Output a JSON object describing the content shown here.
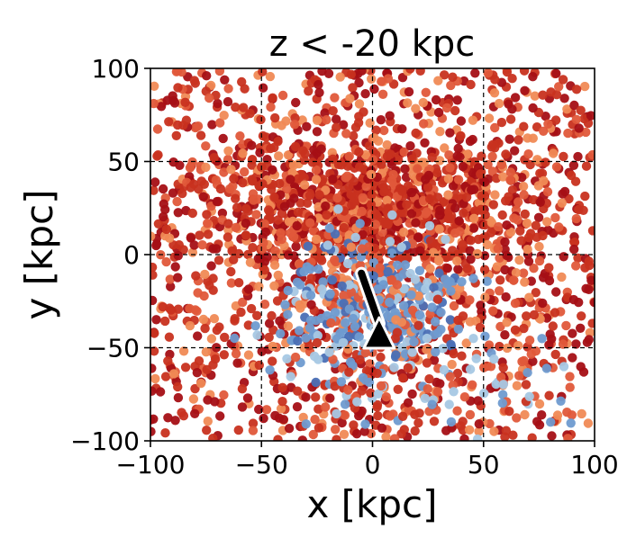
{
  "chart_data": {
    "type": "scatter",
    "title": "z < -20 kpc",
    "xlabel": "x [kpc]",
    "ylabel": "y [kpc]",
    "xlim": [
      -100,
      100
    ],
    "ylim": [
      -100,
      100
    ],
    "xticks": [
      -100,
      -50,
      0,
      50,
      100
    ],
    "yticks": [
      -100,
      -50,
      0,
      50,
      100
    ],
    "xtick_labels": [
      "−100",
      "−50",
      "0",
      "50",
      "100"
    ],
    "ytick_labels": [
      "−100",
      "−50",
      "0",
      "50",
      "100"
    ],
    "grid": true,
    "grid_style": "dashed",
    "colors": {
      "red_dark": "#a50f15",
      "red": "#c8321f",
      "orange_red": "#e0583a",
      "orange": "#f08a55",
      "blue_light": "#a6c8e4",
      "blue": "#6f9bd0",
      "blue_dark": "#4a6fb5"
    },
    "clusters": [
      {
        "kind": "uniform",
        "count": 1300,
        "x_range": [
          -100,
          100
        ],
        "y_range": [
          -100,
          100
        ],
        "palette": [
          "red_dark",
          "red",
          "orange_red",
          "red",
          "red_dark",
          "orange"
        ]
      },
      {
        "kind": "gaussian",
        "count": 900,
        "center": [
          0,
          25
        ],
        "sigma": [
          35,
          18
        ],
        "palette": [
          "red_dark",
          "red",
          "orange_red",
          "red",
          "orange"
        ]
      },
      {
        "kind": "gaussian",
        "count": 380,
        "center": [
          0,
          -28
        ],
        "sigma": [
          20,
          18
        ],
        "palette": [
          "blue",
          "blue_dark",
          "blue_light",
          "blue",
          "orange",
          "orange_red"
        ]
      },
      {
        "kind": "gaussian",
        "count": 130,
        "center": [
          25,
          -65
        ],
        "sigma": [
          35,
          18
        ],
        "palette": [
          "blue_light",
          "blue",
          "orange_red",
          "red"
        ]
      }
    ],
    "markers": [
      {
        "name": "bar",
        "type": "segment",
        "x": [
          -5,
          3
        ],
        "y": [
          -10,
          -37
        ],
        "color": "#000000"
      },
      {
        "name": "sun",
        "type": "triangle",
        "x": 3,
        "y": -43,
        "color": "#000000"
      }
    ]
  }
}
